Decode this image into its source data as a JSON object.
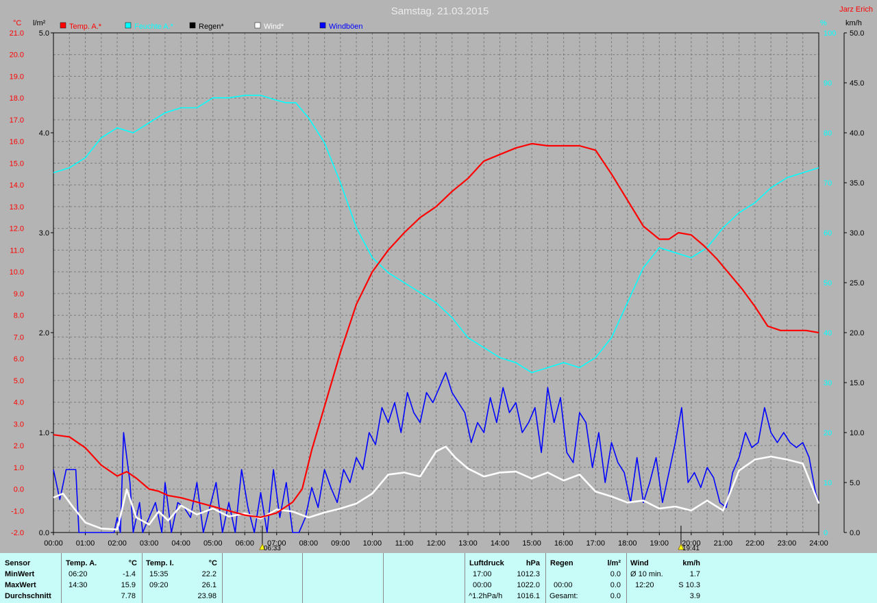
{
  "header": {
    "title": "Samstag. 21.03.2015",
    "author": "Jarz Erich"
  },
  "axis_units": {
    "left_temp": "°C",
    "left_rain": "l/m²",
    "right_pct": "%",
    "right_wind": "km/h"
  },
  "legend": [
    {
      "label": "Temp. A.*",
      "color": "#ff0000"
    },
    {
      "label": "Feuchte A.*",
      "color": "#00ffff"
    },
    {
      "label": "Regen*",
      "color": "#000000"
    },
    {
      "label": "Wind*",
      "color": "#ffffff"
    },
    {
      "label": "Windböen",
      "color": "#0000ff"
    }
  ],
  "colors": {
    "background": "#b4b4b4",
    "plot_area": "#b4b4b4",
    "temp_axis": "#ff0000",
    "rain_axis": "#000000",
    "humidity_axis": "#00ffff",
    "wind_axis": "#000000",
    "panel": "#c8fcf8"
  },
  "chart_data": {
    "type": "line",
    "title": "Samstag. 21.03.2015",
    "x_ticks": [
      "00:00",
      "01:00",
      "02:00",
      "03:00",
      "04:00",
      "05:00",
      "06:00",
      "07:00",
      "08:00",
      "09:00",
      "10:00",
      "11:00",
      "12:00",
      "13:00",
      "14:00",
      "15:00",
      "16:00",
      "17:00",
      "18:00",
      "19:00",
      "20:00",
      "21:00",
      "22:00",
      "23:00",
      "24:00"
    ],
    "xlim": [
      0,
      24
    ],
    "temp_axis": {
      "unit": "°C",
      "ylim": [
        -2.0,
        21.0
      ],
      "ticks": [
        "-2.0",
        "-1.0",
        "0.0",
        "1.0",
        "2.0",
        "3.0",
        "4.0",
        "5.0",
        "6.0",
        "7.0",
        "8.0",
        "9.0",
        "10.0",
        "11.0",
        "12.0",
        "13.0",
        "14.0",
        "15.0",
        "16.0",
        "17.0",
        "18.0",
        "19.0",
        "20.0",
        "21.0"
      ]
    },
    "rain_axis": {
      "unit": "l/m²",
      "ylim": [
        0.0,
        5.0
      ],
      "ticks": [
        "0.0",
        "1.0",
        "2.0",
        "3.0",
        "4.0",
        "5.0"
      ]
    },
    "humidity_axis": {
      "unit": "%",
      "ylim": [
        0,
        100
      ],
      "ticks": [
        "0",
        "10",
        "20",
        "30",
        "40",
        "50",
        "60",
        "70",
        "80",
        "90",
        "100"
      ]
    },
    "wind_axis": {
      "unit": "km/h",
      "ylim": [
        0.0,
        50.0
      ],
      "ticks": [
        "0.0",
        "5.0",
        "10.0",
        "15.0",
        "20.0",
        "25.0",
        "30.0",
        "35.0",
        "40.0",
        "45.0",
        "50.0"
      ]
    },
    "grid": true,
    "sun_markers": [
      {
        "label": "06:33",
        "time": 6.55
      },
      {
        "label": "19:41",
        "time": 19.68
      }
    ],
    "series": [
      {
        "name": "Temp. A.*",
        "axis": "temp",
        "color": "#ff0000",
        "x": [
          0,
          0.5,
          1,
          1.5,
          2,
          2.3,
          2.6,
          3,
          3.3,
          3.6,
          4,
          4.5,
          5,
          5.5,
          6,
          6.5,
          7,
          7.5,
          7.8,
          8.1,
          8.5,
          9,
          9.5,
          10,
          10.5,
          11,
          11.5,
          12,
          12.5,
          13,
          13.5,
          14,
          14.5,
          15,
          15.5,
          16,
          16.5,
          17,
          17.5,
          18,
          18.5,
          19,
          19.3,
          19.6,
          20,
          20.4,
          20.8,
          21.2,
          21.6,
          22,
          22.4,
          22.8,
          23.2,
          23.6,
          24
        ],
        "y": [
          2.5,
          2.4,
          1.9,
          1.1,
          0.6,
          0.8,
          0.5,
          0.0,
          -0.1,
          -0.3,
          -0.4,
          -0.6,
          -0.8,
          -1.0,
          -1.2,
          -1.3,
          -1.1,
          -0.6,
          0.0,
          1.8,
          3.8,
          6.3,
          8.5,
          10.0,
          11.0,
          11.8,
          12.5,
          13.0,
          13.7,
          14.3,
          15.1,
          15.4,
          15.7,
          15.9,
          15.8,
          15.8,
          15.8,
          15.6,
          14.5,
          13.3,
          12.1,
          11.5,
          11.5,
          11.8,
          11.7,
          11.2,
          10.6,
          9.9,
          9.2,
          8.4,
          7.5,
          7.3,
          7.3,
          7.3,
          7.2
        ]
      },
      {
        "name": "Feuchte A.*",
        "axis": "humidity",
        "color": "#00ffff",
        "x": [
          0,
          0.5,
          1,
          1.5,
          2,
          2.5,
          3,
          3.5,
          4,
          4.5,
          5,
          5.5,
          6,
          6.5,
          7,
          7.3,
          7.6,
          8,
          8.5,
          9,
          9.5,
          10,
          10.5,
          11,
          11.5,
          12,
          12.5,
          13,
          13.5,
          14,
          14.5,
          15,
          15.5,
          16,
          16.5,
          17,
          17.5,
          18,
          18.5,
          19,
          19.5,
          20,
          20.5,
          21,
          21.5,
          22,
          22.5,
          23,
          23.5,
          24
        ],
        "y": [
          72,
          73,
          75,
          79,
          81,
          80,
          82,
          84,
          85,
          85,
          87,
          87,
          87.5,
          87.5,
          86.5,
          86,
          86,
          83,
          78,
          70,
          61,
          55,
          52,
          50,
          48,
          46,
          43,
          39,
          37,
          35,
          34,
          32,
          33,
          34,
          33,
          35,
          39,
          46,
          53,
          57,
          56,
          55,
          57,
          61,
          64,
          66,
          69,
          71,
          72,
          73
        ]
      },
      {
        "name": "Wind*",
        "axis": "wind",
        "color": "#ffffff",
        "x": [
          0,
          0.3,
          0.6,
          1,
          1.5,
          2,
          2.3,
          2.6,
          3,
          3.3,
          3.6,
          4,
          4.5,
          5,
          5.5,
          6,
          6.5,
          7,
          7.5,
          8,
          8.5,
          9,
          9.5,
          10,
          10.5,
          11,
          11.5,
          12,
          12.3,
          12.6,
          13,
          13.5,
          14,
          14.5,
          15,
          15.5,
          16,
          16.5,
          17,
          17.5,
          18,
          18.5,
          19,
          19.5,
          20,
          20.5,
          21,
          21.5,
          22,
          22.5,
          23,
          23.5,
          24
        ],
        "y": [
          3.5,
          3.9,
          2.6,
          1.0,
          0.4,
          0.3,
          4.3,
          1.5,
          0.8,
          2.1,
          1.2,
          2.7,
          1.8,
          2.4,
          1.6,
          1.9,
          1.4,
          2.3,
          2.1,
          1.5,
          2.0,
          2.4,
          2.9,
          3.9,
          5.8,
          6.0,
          5.6,
          8.1,
          8.6,
          7.5,
          6.4,
          5.6,
          6.0,
          6.1,
          5.4,
          6.0,
          5.2,
          5.8,
          4.1,
          3.6,
          3.0,
          3.2,
          2.4,
          2.6,
          2.2,
          3.2,
          2.2,
          6.2,
          7.3,
          7.6,
          7.3,
          6.9,
          2.9
        ]
      },
      {
        "name": "Windböen",
        "axis": "wind",
        "color": "#0000ff",
        "x": [
          0,
          0.2,
          0.4,
          0.7,
          0.8,
          1,
          1.3,
          1.6,
          1.9,
          2,
          2.1,
          2.2,
          2.4,
          2.5,
          2.7,
          2.8,
          3.0,
          3.2,
          3.4,
          3.5,
          3.7,
          3.9,
          4.1,
          4.3,
          4.5,
          4.7,
          4.9,
          5.1,
          5.3,
          5.5,
          5.7,
          5.9,
          6.1,
          6.3,
          6.5,
          6.7,
          6.9,
          7.1,
          7.3,
          7.5,
          7.7,
          7.9,
          8.1,
          8.3,
          8.5,
          8.7,
          8.9,
          9.1,
          9.3,
          9.5,
          9.7,
          9.9,
          10.1,
          10.3,
          10.5,
          10.7,
          10.9,
          11.1,
          11.3,
          11.5,
          11.7,
          11.9,
          12.1,
          12.3,
          12.5,
          12.7,
          12.9,
          13.1,
          13.3,
          13.5,
          13.7,
          13.9,
          14.1,
          14.3,
          14.5,
          14.7,
          14.9,
          15.1,
          15.3,
          15.5,
          15.7,
          15.9,
          16.1,
          16.3,
          16.5,
          16.7,
          16.9,
          17.1,
          17.3,
          17.5,
          17.7,
          17.9,
          18.1,
          18.3,
          18.5,
          18.7,
          18.9,
          19.1,
          19.3,
          19.5,
          19.7,
          19.9,
          20.1,
          20.3,
          20.5,
          20.7,
          20.9,
          21.1,
          21.3,
          21.5,
          21.7,
          21.9,
          22.1,
          22.3,
          22.5,
          22.7,
          22.9,
          23.1,
          23.3,
          23.5,
          23.7,
          23.9,
          24
        ],
        "y": [
          6.3,
          3.3,
          6.3,
          6.3,
          0,
          0,
          0,
          0,
          0,
          1.5,
          0,
          10.0,
          5.0,
          0,
          3.0,
          0,
          1.5,
          3.0,
          0,
          5.0,
          0,
          3.0,
          2.5,
          1.5,
          5.0,
          0,
          2.5,
          5.0,
          0,
          3.0,
          0,
          6.3,
          2.5,
          0,
          4.0,
          0,
          6.3,
          1.5,
          5.0,
          0,
          0,
          1.5,
          4.5,
          2.5,
          6.3,
          4.5,
          3.0,
          6.3,
          5.0,
          7.5,
          6.3,
          10.0,
          8.8,
          12.5,
          11.0,
          13.0,
          10.0,
          14.0,
          12.0,
          11.0,
          14.0,
          13.0,
          14.5,
          16.0,
          14.0,
          13.0,
          12.0,
          9.0,
          11.0,
          10.0,
          13.5,
          11.0,
          14.5,
          12.0,
          13.0,
          10.0,
          11.0,
          12.5,
          8.0,
          14.5,
          11.0,
          13.5,
          8.0,
          7.0,
          12.0,
          11.0,
          6.5,
          10.0,
          5.0,
          9.0,
          7.0,
          6.0,
          3.0,
          7.5,
          3.0,
          5.0,
          7.5,
          3.0,
          6.0,
          9.0,
          12.5,
          5.0,
          6.0,
          4.5,
          6.5,
          5.5,
          3.0,
          2.5,
          6.0,
          7.5,
          10.0,
          8.5,
          9.0,
          12.5,
          10.0,
          9.0,
          10.0,
          9.0,
          8.5,
          9.0,
          7.5,
          4.0,
          3.0
        ]
      },
      {
        "name": "Regen*",
        "axis": "rain",
        "color": "#000000",
        "x": [
          0,
          24
        ],
        "y": [
          0,
          0
        ]
      }
    ]
  },
  "summary": {
    "sensor": {
      "label": "Sensor",
      "rows": [
        "MinWert",
        "MaxWert",
        "Durchschnitt"
      ]
    },
    "temp_a": {
      "header": "Temp. A.",
      "unit": "°C",
      "rows": [
        {
          "time": "06:20",
          "value": "-1.4"
        },
        {
          "time": "14:30",
          "value": "15.9"
        },
        {
          "time": "",
          "value": "7.78"
        }
      ]
    },
    "temp_i": {
      "header": "Temp. I.",
      "unit": "°C",
      "rows": [
        {
          "time": "15:35",
          "value": "22.2"
        },
        {
          "time": "09:20",
          "value": "26.1"
        },
        {
          "time": "",
          "value": "23.98"
        }
      ]
    },
    "luftdruck": {
      "header": "Luftdruck",
      "unit": "hPa",
      "rows": [
        {
          "time": "17:00",
          "value": "1012.3"
        },
        {
          "time": "00:00",
          "value": "1022.0"
        },
        {
          "time": "^1.2hPa/h",
          "value": "1016.1"
        }
      ]
    },
    "regen": {
      "header": "Regen",
      "unit": "l/m²",
      "rows": [
        {
          "time": "",
          "value": ""
        },
        {
          "time": "00:00",
          "value": "0.0"
        },
        {
          "time": "Gesamt:",
          "value": "0.0"
        }
      ],
      "first_value": "0.0"
    },
    "wind": {
      "header": "Wind",
      "unit": "km/h",
      "rows": [
        {
          "time": "Ø 10 min.",
          "value": "1.7"
        },
        {
          "time": "12:20",
          "value": "S 10.3"
        },
        {
          "time": "",
          "value": "3.9"
        }
      ]
    }
  }
}
